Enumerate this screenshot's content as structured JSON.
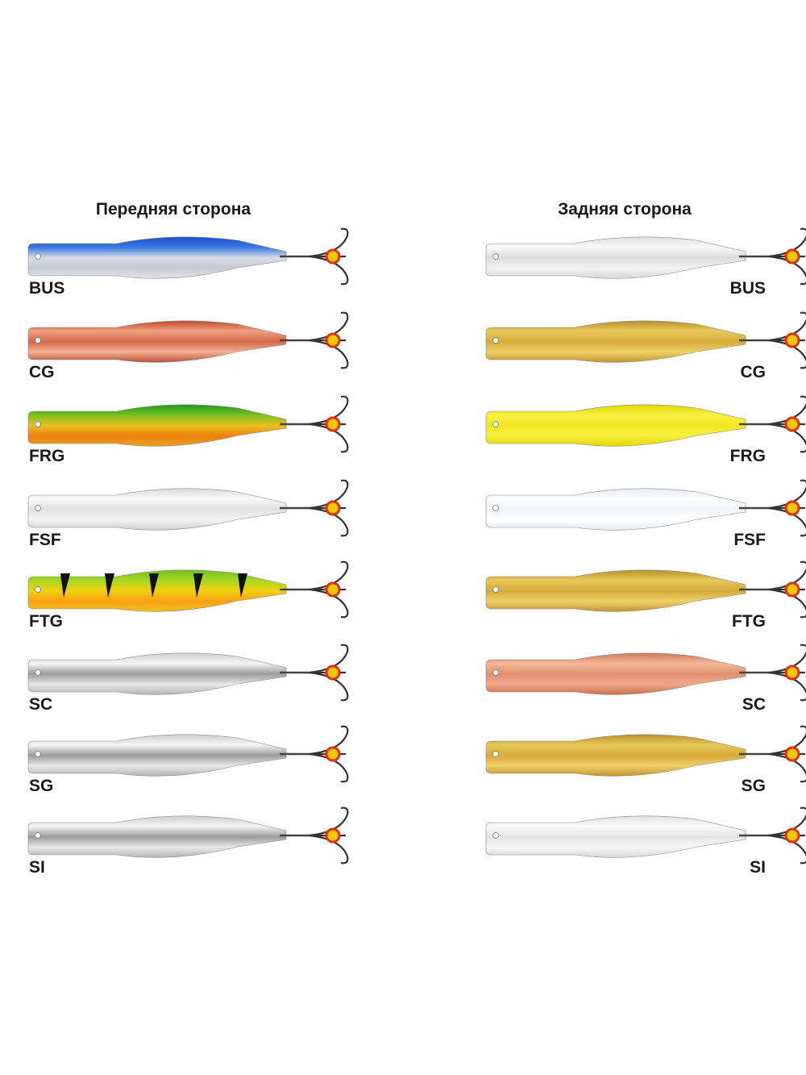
{
  "front": {
    "title": "Передняя сторона",
    "labels": [
      "BUS",
      "CG",
      "FRG",
      "FSF",
      "FTG",
      "SC",
      "SG",
      "SI"
    ]
  },
  "back": {
    "title": "Задняя сторона",
    "labels": [
      "BUS",
      "CG",
      "FRG",
      "FSF",
      "FTG",
      "SC",
      "SG",
      "SI"
    ]
  }
}
